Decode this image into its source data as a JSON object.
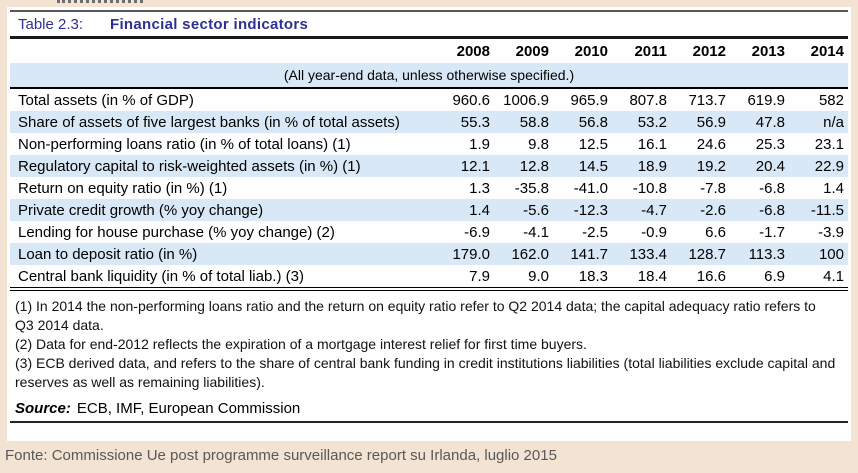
{
  "header": {
    "label": "Table 2.3:",
    "title": "Financial sector indicators"
  },
  "table": {
    "subtitle": "(All year-end data, unless otherwise specified.)",
    "years": [
      "2008",
      "2009",
      "2010",
      "2011",
      "2012",
      "2013",
      "2014"
    ],
    "rows": [
      {
        "label": "Total assets (in % of GDP)",
        "values": [
          "960.6",
          "1006.9",
          "965.9",
          "807.8",
          "713.7",
          "619.9",
          "582"
        ]
      },
      {
        "label": "Share of assets of five largest banks (in % of total assets)",
        "values": [
          "55.3",
          "58.8",
          "56.8",
          "53.2",
          "56.9",
          "47.8",
          "n/a"
        ]
      },
      {
        "label": "Non-performing loans ratio (in % of total loans) (1)",
        "values": [
          "1.9",
          "9.8",
          "12.5",
          "16.1",
          "24.6",
          "25.3",
          "23.1"
        ]
      },
      {
        "label": "Regulatory capital to risk-weighted assets (in %) (1)",
        "values": [
          "12.1",
          "12.8",
          "14.5",
          "18.9",
          "19.2",
          "20.4",
          "22.9"
        ]
      },
      {
        "label": "Return on equity ratio (in %) (1)",
        "values": [
          "1.3",
          "-35.8",
          "-41.0",
          "-10.8",
          "-7.8",
          "-6.8",
          "1.4"
        ]
      },
      {
        "label": "Private credit growth (% yoy change)",
        "values": [
          "1.4",
          "-5.6",
          "-12.3",
          "-4.7",
          "-2.6",
          "-6.8",
          "-11.5"
        ]
      },
      {
        "label": "Lending for house purchase (% yoy change) (2)",
        "values": [
          "-6.9",
          "-4.1",
          "-2.5",
          "-0.9",
          "6.6",
          "-1.7",
          "-3.9"
        ]
      },
      {
        "label": "Loan to deposit ratio (in %)",
        "values": [
          "179.0",
          "162.0",
          "141.7",
          "133.4",
          "128.7",
          "113.3",
          "100"
        ]
      },
      {
        "label": "Central bank liquidity (in % of total liab.) (3)",
        "values": [
          "7.9",
          "9.0",
          "18.3",
          "18.4",
          "16.6",
          "6.9",
          "4.1"
        ]
      }
    ]
  },
  "footnotes": [
    "(1) In 2014 the non-performing loans ratio and the return on equity ratio refer to Q2 2014 data; the capital adequacy ratio refers to Q3 2014 data.",
    "(2) Data for end-2012 reflects the expiration of a mortgage interest relief for first time buyers.",
    "(3) ECB derived data, and refers to the share of central bank funding in credit institutions liabilities (total liabilities exclude capital and reserves as well as remaining liabilities)."
  ],
  "source": {
    "label": "Source:",
    "text": "ECB, IMF, European Commission"
  },
  "caption": "Fonte: Commissione Ue post programme surveillance report su Irlanda, luglio 2015",
  "colors": {
    "accent_navy": "#2e3192",
    "row_highlight": "#d9e8f6",
    "frame_beige": "#f2e3d3",
    "caption_gray": "#595959"
  }
}
